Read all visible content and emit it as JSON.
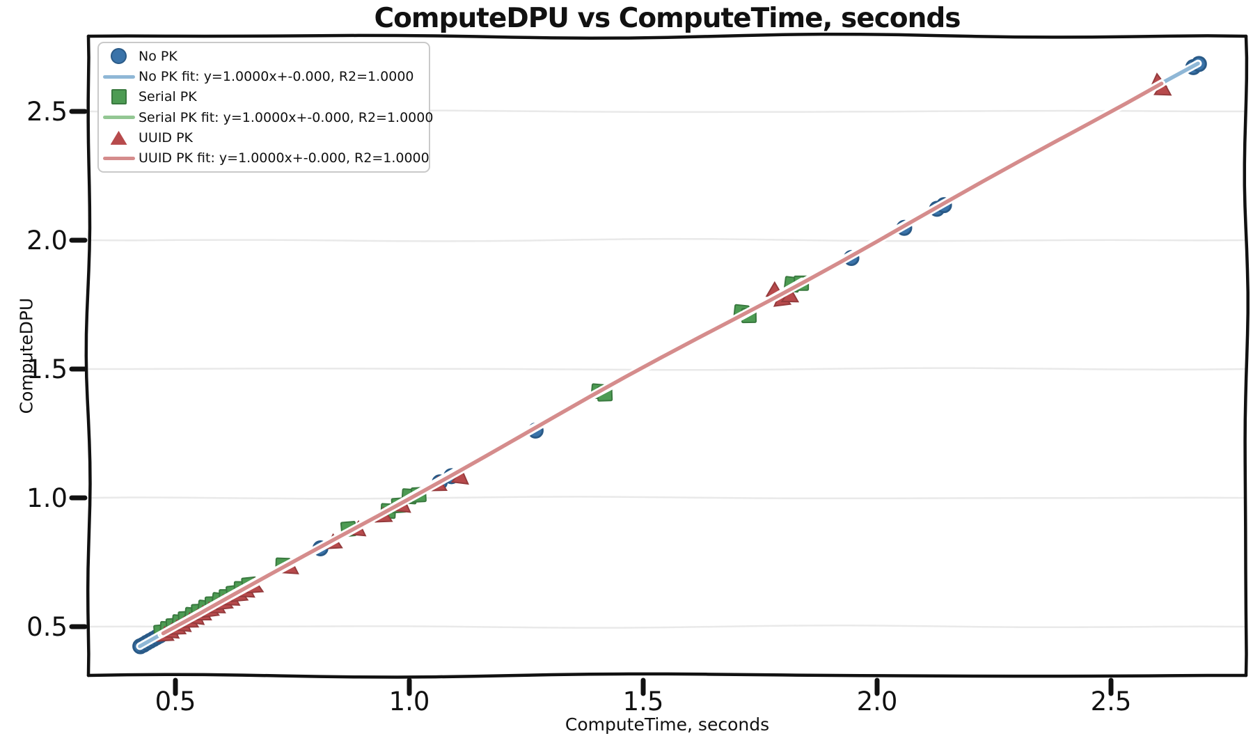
{
  "chart_data": {
    "type": "scatter",
    "style": "xkcd-sketch",
    "title": "ComputeDPU vs ComputeTime, seconds",
    "xlabel": "ComputeTime, seconds",
    "ylabel": "ComputeDPU",
    "xlim": [
      0.29,
      2.79
    ],
    "ylim": [
      0.31,
      2.79
    ],
    "grid": "horizontal-only",
    "grid_color": "#e9e9e9",
    "frame_color": "#111111",
    "xticks": [
      {
        "v": 0.5,
        "label": "0.5"
      },
      {
        "v": 1.0,
        "label": "1.0"
      },
      {
        "v": 1.5,
        "label": "1.5"
      },
      {
        "v": 2.0,
        "label": "2.0"
      },
      {
        "v": 2.5,
        "label": "2.5"
      }
    ],
    "yticks": [
      {
        "v": 0.5,
        "label": "0.5"
      },
      {
        "v": 1.0,
        "label": "1.0"
      },
      {
        "v": 1.5,
        "label": "1.5"
      },
      {
        "v": 2.0,
        "label": "2.0"
      },
      {
        "v": 2.5,
        "label": "2.5"
      }
    ],
    "series": [
      {
        "name": "No PK",
        "marker": "circle",
        "marker_color": "#3a73a9",
        "marker_edge": "#2a5a87",
        "line_color": "#8fb7d6",
        "points": [
          [
            0.425,
            0.424
          ],
          [
            0.432,
            0.43
          ],
          [
            0.439,
            0.438
          ],
          [
            0.446,
            0.445
          ],
          [
            0.453,
            0.452
          ],
          [
            0.46,
            0.459
          ],
          [
            0.467,
            0.466
          ],
          [
            0.474,
            0.473
          ],
          [
            0.481,
            0.48
          ],
          [
            0.489,
            0.488
          ],
          [
            0.497,
            0.495
          ],
          [
            0.505,
            0.503
          ],
          [
            0.81,
            0.804
          ],
          [
            1.065,
            1.06
          ],
          [
            1.09,
            1.084
          ],
          [
            1.27,
            1.261
          ],
          [
            1.945,
            1.931
          ],
          [
            2.058,
            2.048
          ],
          [
            2.128,
            2.122
          ],
          [
            2.143,
            2.136
          ],
          [
            2.676,
            2.672
          ],
          [
            2.688,
            2.684
          ]
        ],
        "fit": {
          "label": "No PK fit: y=1.0000x+-0.000, R2=1.0000",
          "slope": 1.0,
          "intercept": -0.0,
          "r2": 1.0,
          "x1": 0.424,
          "y1": 0.424,
          "x2": 2.686,
          "y2": 2.686
        }
      },
      {
        "name": "Serial PK",
        "marker": "square",
        "marker_color": "#4d9b53",
        "marker_edge": "#39793f",
        "line_color": "#93c793",
        "points": [
          [
            0.47,
            0.479
          ],
          [
            0.483,
            0.491
          ],
          [
            0.496,
            0.504
          ],
          [
            0.509,
            0.517
          ],
          [
            0.522,
            0.531
          ],
          [
            0.536,
            0.545
          ],
          [
            0.55,
            0.559
          ],
          [
            0.564,
            0.573
          ],
          [
            0.579,
            0.588
          ],
          [
            0.594,
            0.602
          ],
          [
            0.609,
            0.616
          ],
          [
            0.625,
            0.631
          ],
          [
            0.641,
            0.647
          ],
          [
            0.658,
            0.663
          ],
          [
            0.73,
            0.738
          ],
          [
            0.87,
            0.879
          ],
          [
            0.955,
            0.949
          ],
          [
            0.978,
            0.971
          ],
          [
            1.0,
            1.006
          ],
          [
            1.02,
            1.012
          ],
          [
            1.405,
            1.413
          ],
          [
            1.418,
            1.404
          ],
          [
            1.71,
            1.72
          ],
          [
            1.726,
            1.708
          ],
          [
            1.818,
            1.829
          ],
          [
            1.838,
            1.833
          ]
        ],
        "fit": {
          "label": "Serial PK fit: y=1.0000x+-0.000, R2=1.0000",
          "slope": 1.0,
          "intercept": -0.0,
          "r2": 1.0,
          "x1": 0.47,
          "y1": 0.47,
          "x2": 1.84,
          "y2": 1.84
        }
      },
      {
        "name": "UUID PK",
        "marker": "triangle",
        "marker_color": "#b74a4c",
        "marker_edge": "#953b3d",
        "line_color": "#d58c8c",
        "points": [
          [
            0.478,
            0.469
          ],
          [
            0.491,
            0.482
          ],
          [
            0.504,
            0.495
          ],
          [
            0.517,
            0.508
          ],
          [
            0.531,
            0.522
          ],
          [
            0.545,
            0.536
          ],
          [
            0.559,
            0.55
          ],
          [
            0.574,
            0.564
          ],
          [
            0.589,
            0.578
          ],
          [
            0.604,
            0.593
          ],
          [
            0.62,
            0.608
          ],
          [
            0.636,
            0.624
          ],
          [
            0.652,
            0.64
          ],
          [
            0.669,
            0.657
          ],
          [
            0.746,
            0.731
          ],
          [
            0.838,
            0.828
          ],
          [
            0.89,
            0.879
          ],
          [
            0.945,
            0.931
          ],
          [
            0.986,
            0.971
          ],
          [
            1.062,
            1.052
          ],
          [
            1.11,
            1.081
          ],
          [
            1.781,
            1.806
          ],
          [
            1.796,
            1.771
          ],
          [
            1.814,
            1.785
          ],
          [
            2.6,
            2.616
          ],
          [
            2.611,
            2.588
          ]
        ],
        "fit": {
          "label": "UUID PK fit: y=1.0000x+-0.000, R2=1.0000",
          "slope": 1.0,
          "intercept": -0.0,
          "r2": 1.0,
          "x1": 0.474,
          "y1": 0.474,
          "x2": 2.608,
          "y2": 2.608
        }
      }
    ],
    "legend": {
      "position": "upper-left",
      "entries": [
        {
          "label": "No PK",
          "swatch": "circle",
          "series": 0
        },
        {
          "label": "No PK fit: y=1.0000x+-0.000, R2=1.0000",
          "swatch": "line",
          "series": 0
        },
        {
          "label": "Serial PK",
          "swatch": "square",
          "series": 1
        },
        {
          "label": "Serial PK fit: y=1.0000x+-0.000, R2=1.0000",
          "swatch": "line",
          "series": 1
        },
        {
          "label": "UUID PK",
          "swatch": "triangle",
          "series": 2
        },
        {
          "label": "UUID PK fit: y=1.0000x+-0.000, R2=1.0000",
          "swatch": "line",
          "series": 2
        }
      ]
    }
  }
}
